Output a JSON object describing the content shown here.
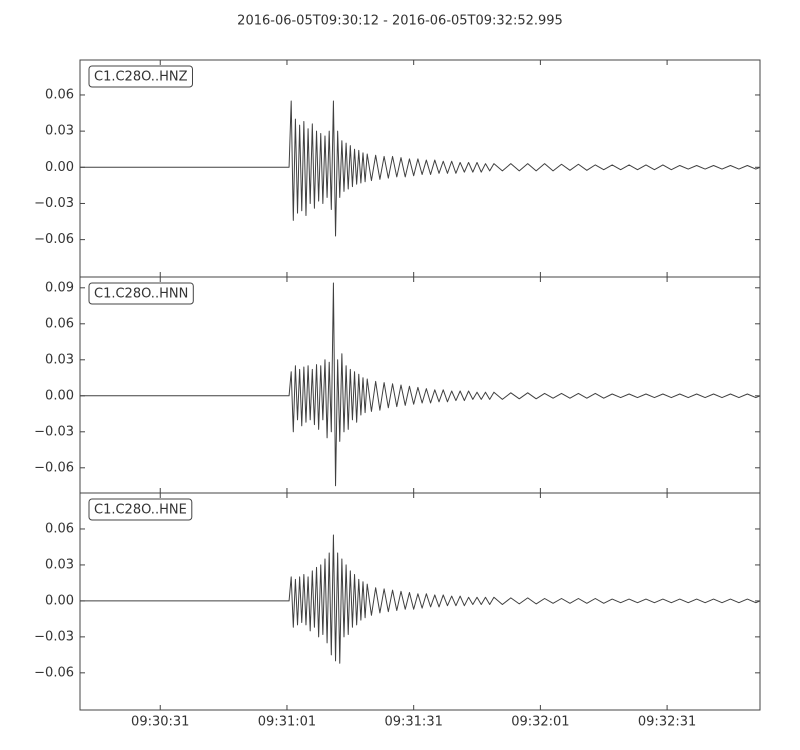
{
  "title": "2016-06-05T09:30:12  -  2016-06-05T09:32:52.995",
  "chart_data": [
    {
      "type": "line",
      "label": "C1.C28O..HNZ",
      "color": "#404040",
      "x": [
        "09:30:12",
        "09:31:01.5",
        "09:31:02",
        "09:31:02.5",
        "09:31:03",
        "09:31:03.5",
        "09:31:04",
        "09:31:04.5",
        "09:31:05",
        "09:31:05.5",
        "09:31:06",
        "09:31:06.5",
        "09:31:07",
        "09:31:07.5",
        "09:31:08",
        "09:31:08.5",
        "09:31:09",
        "09:31:09.5",
        "09:31:10",
        "09:31:10.5",
        "09:31:11",
        "09:31:11.5",
        "09:31:12",
        "09:31:12.5",
        "09:31:13",
        "09:31:13.5",
        "09:31:14",
        "09:31:14.5",
        "09:31:15",
        "09:31:15.5",
        "09:31:16",
        "09:31:16.5",
        "09:31:17",
        "09:31:17.5",
        "09:31:18",
        "09:31:18.5",
        "09:31:19",
        "09:31:19.5",
        "09:31:20",
        "09:31:21",
        "09:31:22",
        "09:31:23",
        "09:31:24",
        "09:31:25",
        "09:31:26",
        "09:31:27",
        "09:31:28",
        "09:31:29",
        "09:31:30",
        "09:31:31",
        "09:31:32",
        "09:31:33",
        "09:31:34",
        "09:31:35",
        "09:31:36",
        "09:31:37",
        "09:31:38",
        "09:31:39",
        "09:31:40",
        "09:31:41",
        "09:31:42",
        "09:31:43",
        "09:31:44",
        "09:31:45",
        "09:31:46",
        "09:31:47",
        "09:31:48",
        "09:31:49",
        "09:31:50",
        "09:31:52",
        "09:31:54",
        "09:31:56",
        "09:31:58",
        "09:32:00",
        "09:32:02",
        "09:32:04",
        "09:32:06",
        "09:32:08",
        "09:32:10",
        "09:32:12",
        "09:32:14",
        "09:32:16",
        "09:32:18",
        "09:32:20",
        "09:32:22",
        "09:32:24",
        "09:32:26",
        "09:32:28",
        "09:32:30",
        "09:32:32",
        "09:32:34",
        "09:32:36",
        "09:32:38",
        "09:32:40",
        "09:32:42",
        "09:32:44",
        "09:32:46",
        "09:32:48",
        "09:32:50",
        "09:32:52",
        "09:32:52.995"
      ],
      "values": [
        0,
        0,
        0.055,
        -0.044,
        0.04,
        -0.038,
        0.035,
        -0.036,
        0.038,
        -0.04,
        0.032,
        -0.03,
        0.036,
        -0.034,
        0.03,
        -0.028,
        0.028,
        -0.03,
        0.026,
        -0.025,
        0.03,
        -0.035,
        0.055,
        -0.057,
        0.03,
        -0.025,
        0.022,
        -0.02,
        0.02,
        -0.018,
        0.018,
        -0.016,
        0.015,
        -0.014,
        0.014,
        -0.013,
        0.012,
        -0.012,
        0.011,
        -0.011,
        0.01,
        -0.01,
        0.009,
        -0.009,
        0.009,
        -0.008,
        0.008,
        -0.008,
        0.007,
        -0.007,
        0.007,
        -0.006,
        0.006,
        -0.006,
        0.006,
        -0.005,
        0.005,
        -0.005,
        0.005,
        -0.005,
        0.004,
        -0.004,
        0.004,
        -0.004,
        0.004,
        -0.004,
        0.003,
        -0.003,
        0.003,
        -0.003,
        0.003,
        -0.003,
        0.003,
        -0.003,
        0.003,
        -0.003,
        0.0025,
        -0.0025,
        0.0025,
        -0.0025,
        0.002,
        -0.002,
        0.002,
        -0.002,
        0.002,
        -0.002,
        0.002,
        -0.002,
        0.002,
        -0.002,
        0.0015,
        -0.0015,
        0.0015,
        -0.0015,
        0.0015,
        -0.0015,
        0.0015,
        -0.0015,
        0.0015,
        -0.0015,
        0
      ],
      "xlim": [
        "09:30:12",
        "09:32:52.995"
      ],
      "ylim": [
        -0.091,
        0.089
      ],
      "yticks": [
        {
          "value": -0.06,
          "label": "−0.06"
        },
        {
          "value": -0.03,
          "label": "−0.03"
        },
        {
          "value": 0,
          "label": "0.00"
        },
        {
          "value": 0.03,
          "label": "0.03"
        },
        {
          "value": 0.06,
          "label": "0.06"
        }
      ]
    },
    {
      "type": "line",
      "label": "C1.C28O..HNN",
      "color": "#404040",
      "x": [
        "09:30:12",
        "09:31:01.5",
        "09:31:02",
        "09:31:02.5",
        "09:31:03",
        "09:31:03.5",
        "09:31:04",
        "09:31:04.5",
        "09:31:05",
        "09:31:05.5",
        "09:31:06",
        "09:31:06.5",
        "09:31:07",
        "09:31:07.5",
        "09:31:08",
        "09:31:08.5",
        "09:31:09",
        "09:31:09.5",
        "09:31:10",
        "09:31:10.5",
        "09:31:11",
        "09:31:11.5",
        "09:31:12",
        "09:31:12.5",
        "09:31:13",
        "09:31:13.5",
        "09:31:14",
        "09:31:14.5",
        "09:31:15",
        "09:31:15.5",
        "09:31:16",
        "09:31:16.5",
        "09:31:17",
        "09:31:17.5",
        "09:31:18",
        "09:31:18.5",
        "09:31:19",
        "09:31:19.5",
        "09:31:20",
        "09:31:21",
        "09:31:22",
        "09:31:23",
        "09:31:24",
        "09:31:25",
        "09:31:26",
        "09:31:27",
        "09:31:28",
        "09:31:29",
        "09:31:30",
        "09:31:31",
        "09:31:32",
        "09:31:33",
        "09:31:34",
        "09:31:35",
        "09:31:36",
        "09:31:37",
        "09:31:38",
        "09:31:39",
        "09:31:40",
        "09:31:41",
        "09:31:42",
        "09:31:43",
        "09:31:44",
        "09:31:45",
        "09:31:46",
        "09:31:47",
        "09:31:48",
        "09:31:49",
        "09:31:50",
        "09:31:52",
        "09:31:54",
        "09:31:56",
        "09:31:58",
        "09:32:00",
        "09:32:02",
        "09:32:04",
        "09:32:06",
        "09:32:08",
        "09:32:10",
        "09:32:12",
        "09:32:14",
        "09:32:16",
        "09:32:18",
        "09:32:20",
        "09:32:22",
        "09:32:24",
        "09:32:26",
        "09:32:28",
        "09:32:30",
        "09:32:32",
        "09:32:34",
        "09:32:36",
        "09:32:38",
        "09:32:40",
        "09:32:42",
        "09:32:44",
        "09:32:46",
        "09:32:48",
        "09:32:50",
        "09:32:52",
        "09:32:52.995"
      ],
      "values": [
        0,
        0,
        0.02,
        -0.03,
        0.025,
        -0.02,
        0.022,
        -0.025,
        0.024,
        -0.022,
        0.025,
        -0.02,
        0.022,
        -0.024,
        0.026,
        -0.028,
        0.025,
        -0.02,
        0.03,
        -0.035,
        0.028,
        -0.03,
        0.094,
        -0.075,
        0.03,
        -0.038,
        0.035,
        -0.03,
        0.025,
        -0.028,
        0.022,
        -0.02,
        0.02,
        -0.022,
        0.018,
        -0.016,
        0.015,
        -0.014,
        0.014,
        -0.013,
        0.012,
        -0.012,
        0.011,
        -0.01,
        0.01,
        -0.009,
        0.009,
        -0.008,
        0.008,
        -0.007,
        0.007,
        -0.006,
        0.006,
        -0.006,
        0.005,
        -0.005,
        0.005,
        -0.005,
        0.004,
        -0.004,
        0.004,
        -0.004,
        0.004,
        -0.003,
        0.003,
        -0.003,
        0.003,
        -0.003,
        0.003,
        -0.003,
        0.0025,
        -0.0025,
        0.0025,
        -0.0025,
        0.002,
        -0.002,
        0.002,
        -0.002,
        0.002,
        -0.002,
        0.002,
        -0.002,
        0.0015,
        -0.0015,
        0.0015,
        -0.0015,
        0.0015,
        -0.0015,
        0.0015,
        -0.0015,
        0.0015,
        -0.0015,
        0.0015,
        -0.0015,
        0.0015,
        -0.0015,
        0.0015,
        -0.0015,
        0.0015,
        -0.0015,
        0
      ],
      "xlim": [
        "09:30:12",
        "09:32:52.995"
      ],
      "ylim": [
        -0.081,
        0.099
      ],
      "yticks": [
        {
          "value": -0.06,
          "label": "−0.06"
        },
        {
          "value": -0.03,
          "label": "−0.03"
        },
        {
          "value": 0,
          "label": "0.00"
        },
        {
          "value": 0.03,
          "label": "0.03"
        },
        {
          "value": 0.06,
          "label": "0.06"
        },
        {
          "value": 0.09,
          "label": "0.09"
        }
      ]
    },
    {
      "type": "line",
      "label": "C1.C28O..HNE",
      "color": "#404040",
      "x": [
        "09:30:12",
        "09:31:01.5",
        "09:31:02",
        "09:31:02.5",
        "09:31:03",
        "09:31:03.5",
        "09:31:04",
        "09:31:04.5",
        "09:31:05",
        "09:31:05.5",
        "09:31:06",
        "09:31:06.5",
        "09:31:07",
        "09:31:07.5",
        "09:31:08",
        "09:31:08.5",
        "09:31:09",
        "09:31:09.5",
        "09:31:10",
        "09:31:10.5",
        "09:31:11",
        "09:31:11.5",
        "09:31:12",
        "09:31:12.5",
        "09:31:13",
        "09:31:13.5",
        "09:31:14",
        "09:31:14.5",
        "09:31:15",
        "09:31:15.5",
        "09:31:16",
        "09:31:16.5",
        "09:31:17",
        "09:31:17.5",
        "09:31:18",
        "09:31:18.5",
        "09:31:19",
        "09:31:19.5",
        "09:31:20",
        "09:31:21",
        "09:31:22",
        "09:31:23",
        "09:31:24",
        "09:31:25",
        "09:31:26",
        "09:31:27",
        "09:31:28",
        "09:31:29",
        "09:31:30",
        "09:31:31",
        "09:31:32",
        "09:31:33",
        "09:31:34",
        "09:31:35",
        "09:31:36",
        "09:31:37",
        "09:31:38",
        "09:31:39",
        "09:31:40",
        "09:31:41",
        "09:31:42",
        "09:31:43",
        "09:31:44",
        "09:31:45",
        "09:31:46",
        "09:31:47",
        "09:31:48",
        "09:31:49",
        "09:31:50",
        "09:31:52",
        "09:31:54",
        "09:31:56",
        "09:31:58",
        "09:32:00",
        "09:32:02",
        "09:32:04",
        "09:32:06",
        "09:32:08",
        "09:32:10",
        "09:32:12",
        "09:32:14",
        "09:32:16",
        "09:32:18",
        "09:32:20",
        "09:32:22",
        "09:32:24",
        "09:32:26",
        "09:32:28",
        "09:32:30",
        "09:32:32",
        "09:32:34",
        "09:32:36",
        "09:32:38",
        "09:32:40",
        "09:32:42",
        "09:32:44",
        "09:32:46",
        "09:32:48",
        "09:32:50",
        "09:32:52",
        "09:32:52.995"
      ],
      "values": [
        0,
        0,
        0.02,
        -0.022,
        0.018,
        -0.02,
        0.02,
        -0.018,
        0.022,
        -0.02,
        0.02,
        -0.025,
        0.025,
        -0.022,
        0.028,
        -0.03,
        0.03,
        -0.028,
        0.035,
        -0.035,
        0.04,
        -0.045,
        0.055,
        -0.05,
        0.04,
        -0.052,
        0.035,
        -0.03,
        0.03,
        -0.028,
        0.025,
        -0.022,
        0.022,
        -0.02,
        0.018,
        -0.016,
        0.016,
        -0.014,
        0.014,
        -0.012,
        0.011,
        -0.01,
        0.01,
        -0.009,
        0.009,
        -0.008,
        0.008,
        -0.007,
        0.007,
        -0.007,
        0.006,
        -0.006,
        0.006,
        -0.005,
        0.005,
        -0.005,
        0.005,
        -0.004,
        0.004,
        -0.004,
        0.004,
        -0.004,
        0.003,
        -0.003,
        0.003,
        -0.003,
        0.003,
        -0.003,
        0.003,
        -0.003,
        0.0025,
        -0.0025,
        0.0025,
        -0.0025,
        0.002,
        -0.002,
        0.002,
        -0.002,
        0.002,
        -0.002,
        0.002,
        -0.002,
        0.0015,
        -0.0015,
        0.0015,
        -0.0015,
        0.0015,
        -0.0015,
        0.0015,
        -0.0015,
        0.0015,
        -0.0015,
        0.0015,
        -0.0015,
        0.0015,
        -0.0015,
        0.0015,
        -0.0015,
        0.0015,
        -0.0015,
        0
      ],
      "xlim": [
        "09:30:12",
        "09:32:52.995"
      ],
      "ylim": [
        -0.091,
        0.09
      ],
      "yticks": [
        {
          "value": -0.06,
          "label": "−0.06"
        },
        {
          "value": -0.03,
          "label": "−0.03"
        },
        {
          "value": 0,
          "label": "0.00"
        },
        {
          "value": 0.03,
          "label": "0.03"
        },
        {
          "value": 0.06,
          "label": "0.06"
        }
      ],
      "xticks": [
        "09:30:31",
        "09:31:01",
        "09:31:31",
        "09:32:01",
        "09:32:31"
      ]
    }
  ]
}
